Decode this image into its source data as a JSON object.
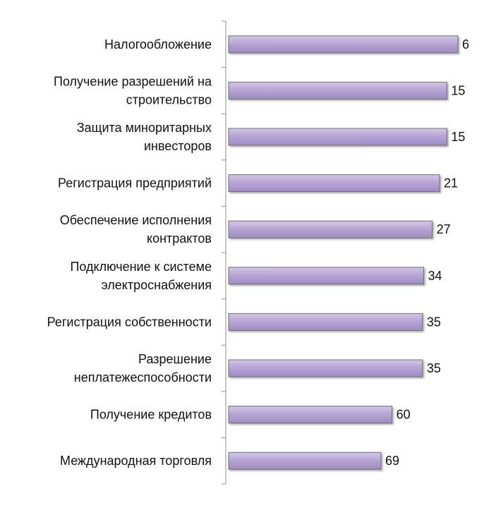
{
  "chart_data": {
    "type": "bar",
    "orientation": "horizontal",
    "categories": [
      [
        "Налогообложение"
      ],
      [
        "Получение разрешений на",
        "строительство"
      ],
      [
        "Защита миноритарных",
        "инвесторов"
      ],
      [
        "Регистрация предприятий"
      ],
      [
        "Обеспечение исполнения",
        "контрактов"
      ],
      [
        "Подключение к системе",
        "электроснабжения"
      ],
      [
        "Регистрация собственности"
      ],
      [
        "Разрешение",
        "неплатежеспособности"
      ],
      [
        "Получение кредитов"
      ],
      [
        "Международная торговля"
      ]
    ],
    "values": [
      6,
      15,
      15,
      21,
      27,
      34,
      35,
      35,
      60,
      69
    ],
    "value_labels": [
      "6",
      "15",
      "15",
      "21",
      "27",
      "34",
      "35",
      "35",
      "60",
      "69"
    ],
    "bar_color": "#b8a6d6",
    "bar_edge_color": "#6f6f6f",
    "axis_color": "#8c8c8c",
    "axis_reversed": true,
    "grid": false,
    "legend": "none",
    "title": "",
    "xlabel": "",
    "ylabel": ""
  }
}
